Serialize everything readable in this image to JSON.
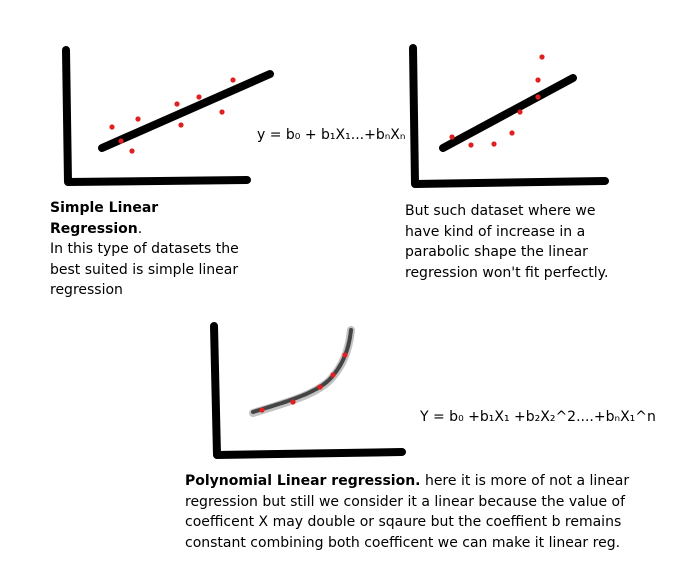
{
  "formula_simple": "y = b₀ + b₁X₁...+bₙXₙ",
  "formula_poly": "Y = b₀ +b₁X₁ +b₂X₂^2....+bₙX₁^n",
  "simple": {
    "title": "Simple Linear Regression",
    "title_suffix": ".",
    "body": "In this type of datasets the best suited is simple linear regression"
  },
  "parabolic_note": "But such dataset where we have kind of increase in a parabolic shape the linear regression won't fit perfectly.",
  "polynomial": {
    "title": "Polynomial Linear regression.",
    "body": " here it is more of not a linear regression but still we consider it a linear because the value of coefficent X may double or sqaure but the coeffient b remains constant combining both coefficent we can make it linear reg."
  },
  "colors": {
    "axes": "#000000",
    "fit_line": "#000000",
    "points": "#e02020",
    "curve": "#555555"
  }
}
